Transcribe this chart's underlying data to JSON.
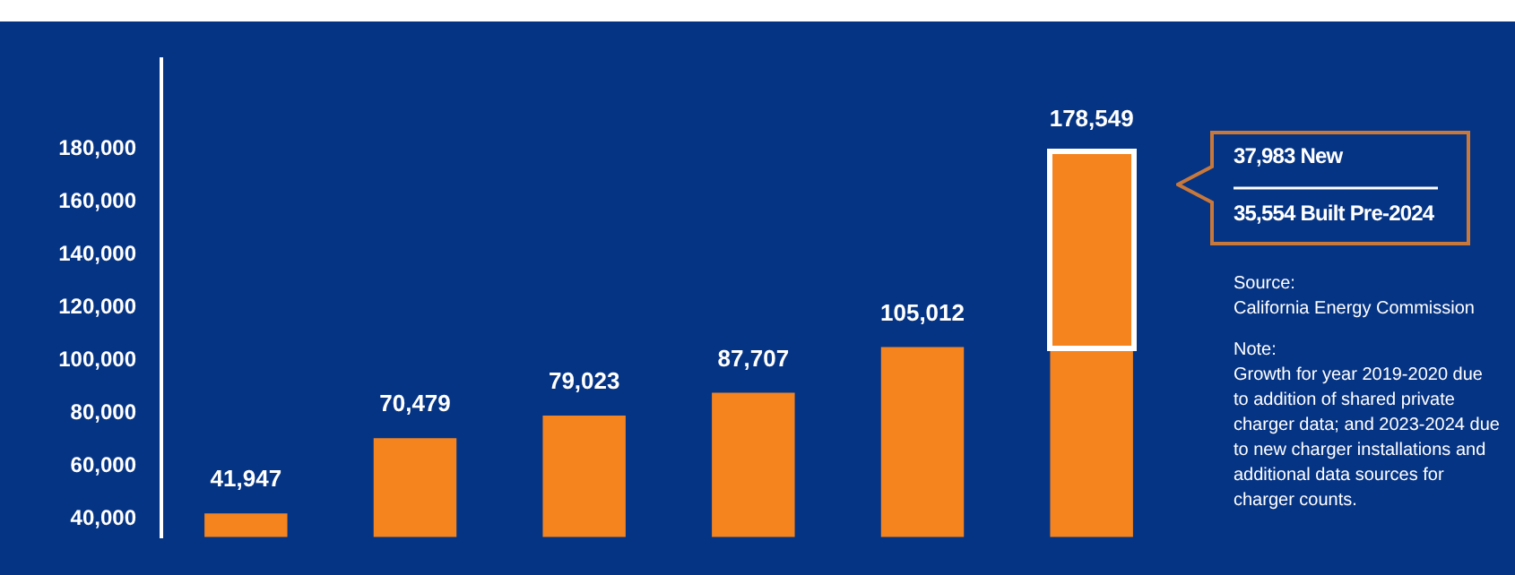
{
  "chart_data": {
    "type": "bar",
    "stacked": true,
    "categories": [
      null,
      null,
      null,
      null,
      null,
      null
    ],
    "series": [
      {
        "color": "#f5841f",
        "values": [
          41947,
          70479,
          79023,
          87707,
          105012,
          105012
        ],
        "value_labels": [
          "41,947",
          "70,479",
          "79,023",
          "87,707",
          "105,012",
          null
        ]
      },
      {
        "color": "#f5841f",
        "values": [
          null,
          null,
          null,
          null,
          null,
          73537
        ]
      }
    ],
    "totals": [
      null,
      null,
      null,
      null,
      null,
      "178,549"
    ],
    "ylim": [
      33000,
      214000
    ],
    "yticks": [
      {
        "value": 40000,
        "label": "40,000"
      },
      {
        "value": 60000,
        "label": "60,000"
      },
      {
        "value": 80000,
        "label": "80,000"
      },
      {
        "value": 100000,
        "label": "100,000"
      },
      {
        "value": 120000,
        "label": "120,000"
      },
      {
        "value": 140000,
        "label": "140,000"
      },
      {
        "value": 160000,
        "label": "160,000"
      },
      {
        "value": 180000,
        "label": "180,000"
      }
    ],
    "annotations": [
      "37,983 New",
      "35,554 Built Pre-2024",
      "Source:\nCalifornia Energy Commission",
      "Note:\nGrowth for year 2019-2020 due to addition of shared private charger data; and 2023-2024 due to new charger installations and additional data sources for charger counts."
    ]
  }
}
